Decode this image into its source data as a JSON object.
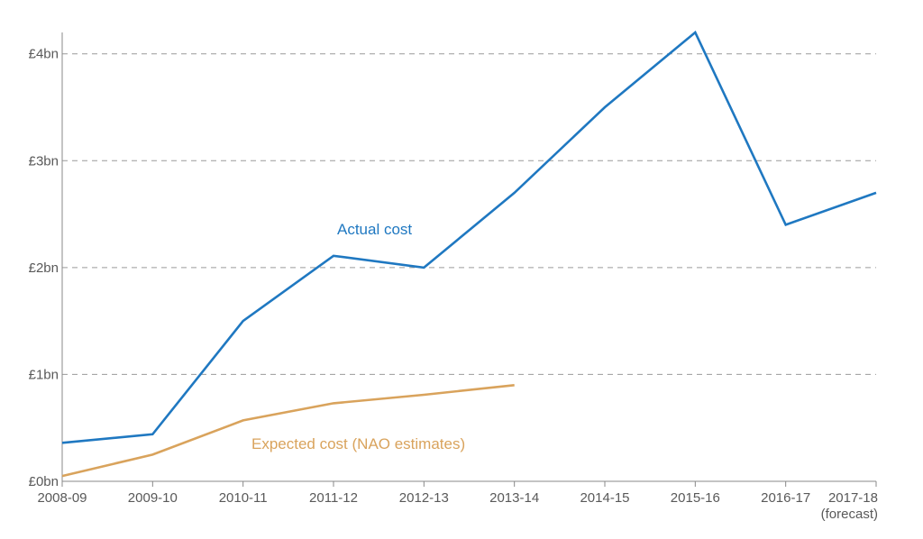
{
  "chart_data": {
    "type": "line",
    "title": "",
    "xlabel": "",
    "ylabel": "",
    "categories": [
      "2008-09",
      "2009-10",
      "2010-11",
      "2011-12",
      "2012-13",
      "2013-14",
      "2014-15",
      "2015-16",
      "2016-17",
      "2017-18"
    ],
    "category_sublabel": {
      "2017-18": "(forecast)"
    },
    "ylim": [
      0,
      4.2
    ],
    "y_ticks": [
      0,
      1,
      2,
      3,
      4
    ],
    "y_tick_labels": [
      "£0bn",
      "£1bn",
      "£2bn",
      "£3bn",
      "£4bn"
    ],
    "grid": "horizontal dashed",
    "series": [
      {
        "name": "Actual cost",
        "color": "#1f78c1",
        "values": [
          0.36,
          0.44,
          1.5,
          2.11,
          2.0,
          2.7,
          3.5,
          4.2,
          2.4,
          2.7
        ]
      },
      {
        "name": "Expected cost (NAO estimates)",
        "color": "#d9a35c",
        "values": [
          0.05,
          0.25,
          0.57,
          0.73,
          0.81,
          0.9,
          null,
          null,
          null,
          null
        ]
      }
    ]
  }
}
